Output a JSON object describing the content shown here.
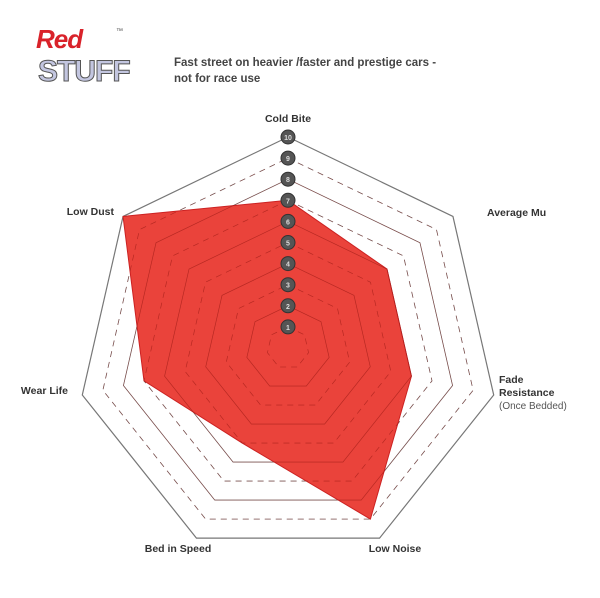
{
  "logo": {
    "line1": "Red",
    "line2": "STUFF",
    "tm": "™"
  },
  "subtitle": [
    "Fast street on heavier /faster and prestige cars -",
    "not for race use"
  ],
  "chart_data": {
    "type": "radar",
    "categories": [
      "Cold Bite",
      "Average Mu",
      "Fade Resistance",
      "Low Noise",
      "Bed in Speed",
      "Wear Life",
      "Low Dust"
    ],
    "category_notes": {
      "Fade Resistance": "(Once Bedded)"
    },
    "values": [
      7,
      6,
      6,
      9,
      5,
      7,
      10
    ],
    "scale": {
      "min": 0,
      "max": 10,
      "ticks": [
        1,
        2,
        3,
        4,
        5,
        6,
        7,
        8,
        9,
        10
      ]
    },
    "fill_color": "#e8332a",
    "grid": true
  }
}
